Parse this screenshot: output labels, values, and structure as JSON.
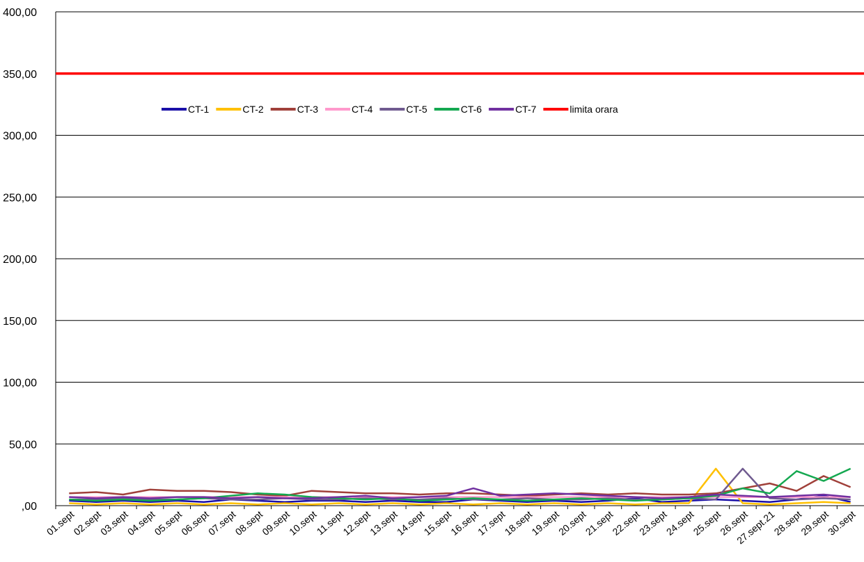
{
  "chart_data": {
    "type": "line",
    "title": "",
    "xlabel": "",
    "ylabel": "",
    "ylim": [
      0,
      400
    ],
    "yticks": [
      0,
      50,
      100,
      150,
      200,
      250,
      300,
      350,
      400
    ],
    "ytick_labels": [
      ",00",
      "50,00",
      "100,00",
      "150,00",
      "200,00",
      "250,00",
      "300,00",
      "350,00",
      "400,00"
    ],
    "categories": [
      "01.sept",
      "02.sept",
      "03.sept",
      "04.sept",
      "05.sept",
      "06.sept",
      "07.sept",
      "08.sept",
      "09.sept",
      "10.sept",
      "11.sept",
      "12.sept",
      "13.sept",
      "14.sept",
      "15.sept",
      "16.sept",
      "17.sept",
      "18.sept",
      "19.sept",
      "20.sept",
      "21.sept",
      "22.sept",
      "23.sept",
      "24.sept",
      "25.sept",
      "26.sept",
      "27.sept.21",
      "28.sept",
      "29.sept",
      "30.sept"
    ],
    "grid": true,
    "legend_position": "top-left",
    "series": [
      {
        "name": "CT-1",
        "color": "#1a0fa8",
        "values": [
          4,
          3,
          4,
          3,
          4,
          3,
          5,
          4,
          3,
          4,
          4,
          3,
          4,
          3,
          3,
          5,
          4,
          3,
          4,
          3,
          4,
          6,
          3,
          4,
          5,
          4,
          3,
          5,
          8,
          3
        ]
      },
      {
        "name": "CT-2",
        "color": "#ffc000",
        "values": [
          2,
          1,
          2,
          1,
          2,
          1,
          2,
          1,
          2,
          1,
          2,
          1,
          2,
          1,
          2,
          1,
          2,
          1,
          2,
          1,
          2,
          1,
          2,
          2,
          30,
          2,
          1,
          2,
          3,
          2
        ]
      },
      {
        "name": "CT-3",
        "color": "#a0403a",
        "values": [
          10,
          11,
          9,
          13,
          12,
          12,
          11,
          9,
          8,
          12,
          11,
          10,
          10,
          9,
          10,
          10,
          9,
          8,
          9,
          10,
          9,
          10,
          9,
          9,
          10,
          14,
          18,
          12,
          24,
          15
        ]
      },
      {
        "name": "CT-4",
        "color": "#ff99cc",
        "values": [
          7,
          7,
          7,
          7,
          7,
          7,
          7,
          7,
          7,
          7,
          7,
          7,
          7,
          7,
          7,
          7,
          7,
          7,
          7,
          7,
          7,
          7,
          7,
          7,
          7,
          7,
          7,
          7,
          7,
          7
        ]
      },
      {
        "name": "CT-5",
        "color": "#6f5a8f",
        "values": [
          5,
          5,
          6,
          5,
          5,
          6,
          5,
          5,
          6,
          5,
          5,
          6,
          5,
          5,
          6,
          5,
          5,
          6,
          5,
          5,
          6,
          5,
          5,
          6,
          5,
          30,
          6,
          5,
          6,
          5
        ]
      },
      {
        "name": "CT-6",
        "color": "#14a850",
        "values": [
          5,
          4,
          5,
          4,
          5,
          6,
          8,
          10,
          9,
          7,
          6,
          5,
          6,
          4,
          5,
          6,
          5,
          4,
          5,
          6,
          5,
          4,
          5,
          6,
          8,
          14,
          10,
          28,
          20,
          30
        ]
      },
      {
        "name": "CT-7",
        "color": "#7030a0",
        "values": [
          7,
          6,
          7,
          6,
          7,
          7,
          6,
          7,
          6,
          6,
          7,
          8,
          6,
          7,
          8,
          14,
          8,
          9,
          10,
          9,
          8,
          7,
          6,
          7,
          9,
          8,
          7,
          8,
          9,
          7
        ]
      },
      {
        "name": "limita orara",
        "color": "#ff0000",
        "values": [
          350,
          350,
          350,
          350,
          350,
          350,
          350,
          350,
          350,
          350,
          350,
          350,
          350,
          350,
          350,
          350,
          350,
          350,
          350,
          350,
          350,
          350,
          350,
          350,
          350,
          350,
          350,
          350,
          350,
          350
        ]
      }
    ]
  }
}
